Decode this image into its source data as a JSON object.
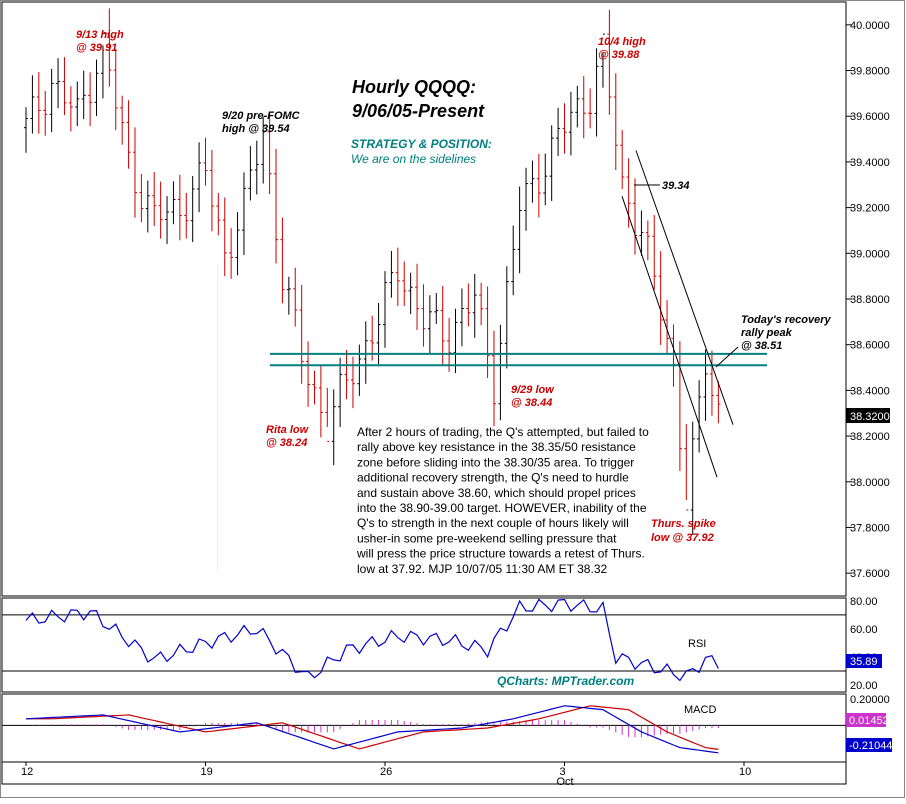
{
  "chart_data": [
    {
      "type": "bar",
      "panel": "price",
      "bar_style": "hourly OHLC bars",
      "title": "Hourly QQQQ:",
      "subtitle": "9/06/05-Present",
      "strategy_heading": "STRATEGY & POSITION:",
      "strategy_text": "We are on the sidelines",
      "ylim": [
        37.5,
        40.1
      ],
      "y_ticks": [
        "40.0000",
        "39.8000",
        "39.6000",
        "39.4000",
        "39.2000",
        "39.0000",
        "38.8000",
        "38.6000",
        "38.4000",
        "38.2000",
        "38.0000",
        "37.8000",
        "37.6000"
      ],
      "y_tick_values": [
        40.0,
        39.8,
        39.6,
        39.4,
        39.2,
        39.0,
        38.8,
        38.6,
        38.4,
        38.2,
        38.0,
        37.8,
        37.6
      ],
      "last_value_label": "38.3200",
      "last_value": 38.32,
      "resistance_levels": [
        38.56,
        38.51
      ],
      "key_points": [
        {
          "x_bar": 12,
          "y": 39.91
        },
        {
          "x_bar": 37,
          "y": 39.54
        },
        {
          "x_bar": 47,
          "y": 38.24
        },
        {
          "x_bar": 73,
          "y": 38.44
        },
        {
          "x_bar": 90,
          "y": 39.88
        },
        {
          "x_bar": 103,
          "y": 37.92
        },
        {
          "x_bar": 106,
          "y": 38.51
        }
      ],
      "annotations": [
        {
          "line1": "9/13 high",
          "line2": "@ 39.91"
        },
        {
          "line1": "9/20 pre-FOMC",
          "line2": "high @ 39.54"
        },
        {
          "line1": "Rita low",
          "line2": "@ 38.24"
        },
        {
          "line1": "9/29 low",
          "line2": "@ 38.44"
        },
        {
          "line1": "10/4 high",
          "line2": "@ 39.88"
        },
        {
          "line1": "39.34",
          "line2": ""
        },
        {
          "line1": "Today's recovery",
          "line2": "rally peak",
          "line3": "@ 38.51"
        },
        {
          "line1": "Thurs. spike",
          "line2": "low @ 37.92"
        }
      ],
      "commentary": [
        "After 2 hours of trading, the Q's attempted, but failed to",
        "rally above key resistance in the 38.35/50 resistance",
        "zone before sliding into the 38.30/35 area. To trigger",
        "additional recovery strength, the Q's need to hurdle",
        "and sustain above 38.60, which should propel prices",
        "into the 38.90-39.00 target. HOWEVER, inability of the",
        "Q's to strength in the next couple of hours likely will",
        "usher-in some pre-weekend selling pressure that",
        "will press the price structure towards a retest of Thurs.",
        "low at 37.92.  MJP 10/07/05 11:30 AM ET 38.32"
      ]
    },
    {
      "type": "line",
      "panel": "rsi",
      "series": [
        {
          "name": "RSI",
          "last": 35.89
        }
      ],
      "ylim": [
        15,
        82
      ],
      "y_ticks": [
        "80.00",
        "60.00",
        "40.00",
        "20.00"
      ],
      "y_tick_values": [
        80,
        60,
        40,
        20
      ],
      "reference_lines": [
        70,
        30
      ],
      "last_value_label": "35.89",
      "watermark": "QCharts: MPTrader.com"
    },
    {
      "type": "line",
      "panel": "macd",
      "series": [
        {
          "name": "MACD",
          "last": -0.21044
        },
        {
          "name": "signal",
          "last": -0.2
        },
        {
          "name": "histogram",
          "last": 0.01452
        }
      ],
      "ylim": [
        -0.28,
        0.24
      ],
      "y_ticks": [
        "0.20000"
      ],
      "y_tick_values": [
        0.2
      ],
      "reference_lines": [
        0
      ],
      "last_value_labels": [
        "0.01452",
        "-0.21044"
      ]
    }
  ],
  "x_axis": {
    "ticks": [
      {
        "label": "12",
        "bar": 0
      },
      {
        "label": "19",
        "bar": 28
      },
      {
        "label": "26",
        "bar": 56
      },
      {
        "label": "3",
        "sub": "Oct",
        "bar": 84
      },
      {
        "label": "10",
        "bar": 112
      }
    ]
  },
  "colors": {
    "up_bar": "#000000",
    "down_bar": "#cc0000",
    "resistance": "#008080",
    "rsi_line": "#0000cc",
    "macd_line": "#0000cc",
    "signal_line": "#cc0000",
    "histogram": "#cc33cc",
    "annotation_red": "#cc0000",
    "title_teal": "#008080",
    "watermark": "#008080",
    "highlight": "#ffff66"
  }
}
